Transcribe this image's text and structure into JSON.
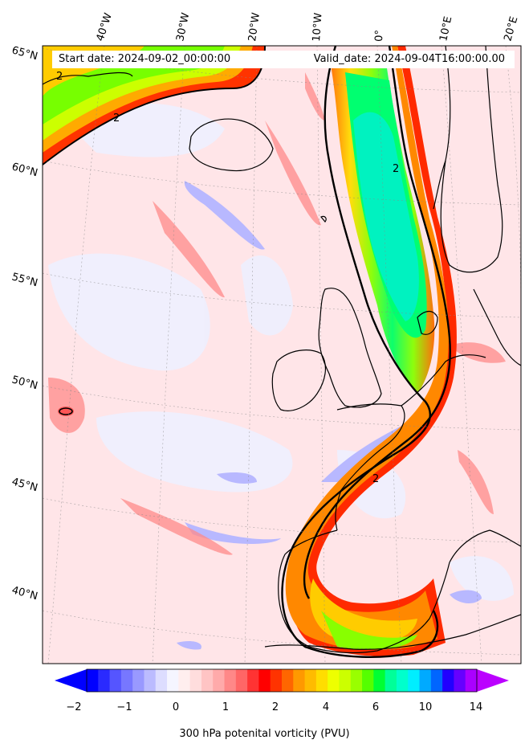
{
  "header": {
    "start_date": "Start date: 2024-09-02_00:00:00",
    "valid_date": "Valid_date: 2024-09-04T16:00:00.00"
  },
  "lon_labels": [
    "40°W",
    "30°W",
    "20°W",
    "10°W",
    "0°",
    "10°E",
    "20°E"
  ],
  "lat_labels": [
    "65°N",
    "60°N",
    "55°N",
    "50°N",
    "45°N",
    "40°N"
  ],
  "contour_labels": [
    "2",
    "2",
    "2",
    "2"
  ],
  "colorbar": {
    "title": "300 hPa potenital vorticity (PVU)",
    "ticks": [
      "−2",
      "−1",
      "0",
      "1",
      "2",
      "4",
      "6",
      "10",
      "14"
    ],
    "colors": [
      "#0000ff",
      "#2a2aff",
      "#5555ff",
      "#7777ff",
      "#9999ff",
      "#bbbbff",
      "#ddddff",
      "#f5f5ff",
      "#ffeeee",
      "#ffdddd",
      "#ffc4c4",
      "#ffaaaa",
      "#ff8888",
      "#ff6666",
      "#ff3333",
      "#ff0000",
      "#ff3300",
      "#ff6600",
      "#ff9900",
      "#ffbb00",
      "#ffdd00",
      "#eeff00",
      "#ccff00",
      "#99ff00",
      "#55ff00",
      "#00ff33",
      "#00ff99",
      "#00ffcc",
      "#00eeff",
      "#00aaff",
      "#0066ff",
      "#2200ff",
      "#6600ff",
      "#aa00ff"
    ],
    "under_color": "#0000ff",
    "over_color": "#bb00ff"
  },
  "colors": {
    "background_pv": "#ffe4e6",
    "low_pv": "#c8c8ff",
    "high_pv_core": "#00f5c0",
    "contour": "#000000"
  }
}
